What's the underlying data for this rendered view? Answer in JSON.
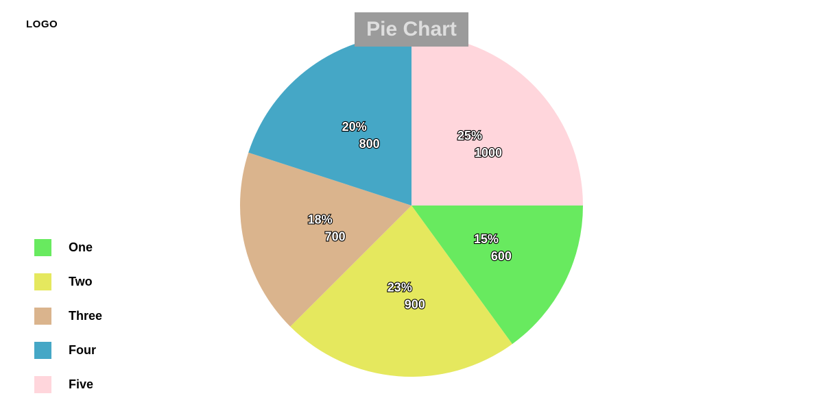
{
  "logo_text": "LOGO",
  "chart_data": {
    "type": "pie",
    "title": "Pie Chart",
    "legend_position": "bottom-left",
    "slices": [
      {
        "name": "One",
        "value": 600,
        "percent_label": "15%",
        "color": "#68ea5f"
      },
      {
        "name": "Two",
        "value": 900,
        "percent_label": "23%",
        "color": "#e5e85e"
      },
      {
        "name": "Three",
        "value": 700,
        "percent_label": "18%",
        "color": "#dab48d"
      },
      {
        "name": "Four",
        "value": 800,
        "percent_label": "20%",
        "color": "#45a7c6"
      },
      {
        "name": "Five",
        "value": 1000,
        "percent_label": "25%",
        "color": "#ffd6dc"
      }
    ]
  },
  "colors": {
    "title_background": "#9b9b9b",
    "title_text": "#dedede"
  }
}
